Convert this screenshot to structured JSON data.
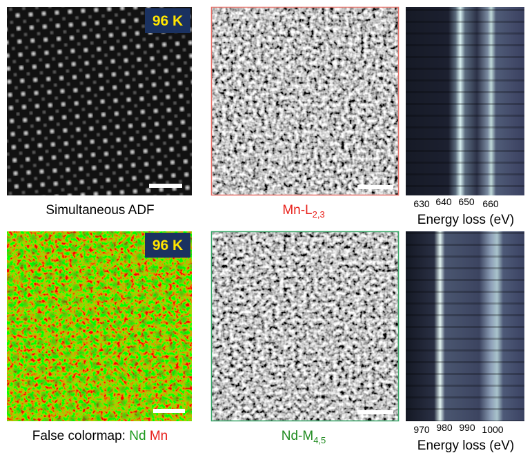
{
  "panels": {
    "adf": {
      "badge": "96 K",
      "caption": "Simultaneous ADF"
    },
    "mn": {
      "caption": {
        "base": "Mn-L",
        "sub": "2,3"
      }
    },
    "mn_spectrum": {
      "ticks": [
        "630",
        "640",
        "650",
        "660"
      ],
      "axis_label": "Energy loss (eV)"
    },
    "colormap": {
      "badge": "96 K",
      "caption": {
        "prefix": "False colormap:",
        "nd": "Nd",
        "mn": "Mn"
      }
    },
    "nd": {
      "caption": {
        "base": "Nd-M",
        "sub": "4,5"
      }
    },
    "nd_spectrum": {
      "ticks": [
        "970",
        "980",
        "990",
        "1000"
      ],
      "axis_label": "Energy loss (eV)"
    }
  }
}
